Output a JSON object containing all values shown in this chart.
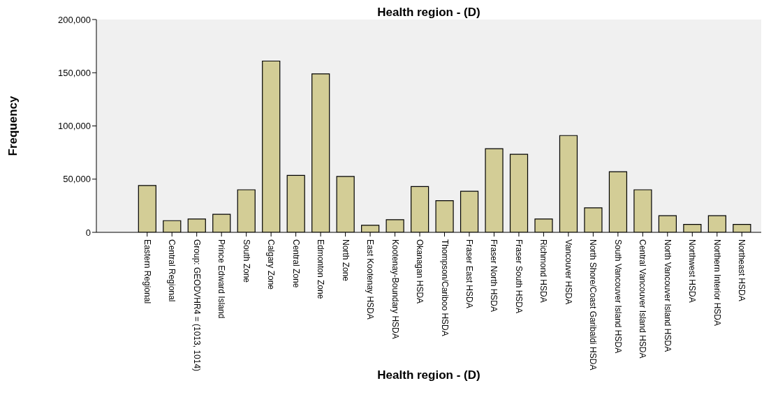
{
  "chart_data": {
    "type": "bar",
    "title": "Health region - (D)",
    "xlabel": "Health region - (D)",
    "ylabel": "Frequency",
    "categories": [
      "Eastern Regional",
      "Central Regional",
      "Group: GEODVHR4 = (1013, 1014)",
      "Prince Edward Island",
      "South Zone",
      "Calgary Zone",
      "Central Zone",
      "Edmonton Zone",
      "North Zone",
      "East Kootenay HSDA",
      "Kootenay-Boundary HSDA",
      "Okanagan HSDA",
      "Thompson/Cariboo HSDA",
      "Fraser East HSDA",
      "Fraser North HSDA",
      "Fraser South HSDA",
      "Richmond HSDA",
      "Vancouver HSDA",
      "North Shore/Coast Garibaldi HSDA",
      "South Vancouver Island HSDA",
      "Central Vancouver Island HSDA",
      "North Vancouver Island HSDA",
      "Northwest HSDA",
      "Northern Interior HSDA",
      "Northeast HSDA"
    ],
    "values": [
      44000,
      11000,
      12500,
      17000,
      40000,
      161000,
      53500,
      149000,
      52500,
      6700,
      11900,
      43000,
      29700,
      38600,
      78600,
      73400,
      12600,
      91000,
      23000,
      57000,
      40000,
      15600,
      7400,
      15600,
      7400
    ],
    "color": "#d3cd96",
    "ylim": [
      0,
      200000
    ],
    "yticks": [
      0,
      {
        "value": 50000,
        "label": "50,000"
      },
      {
        "value": 100000,
        "label": "100,000"
      },
      {
        "value": 150000,
        "label": "150,000"
      },
      {
        "value": 200000,
        "label": "200,000"
      }
    ]
  }
}
